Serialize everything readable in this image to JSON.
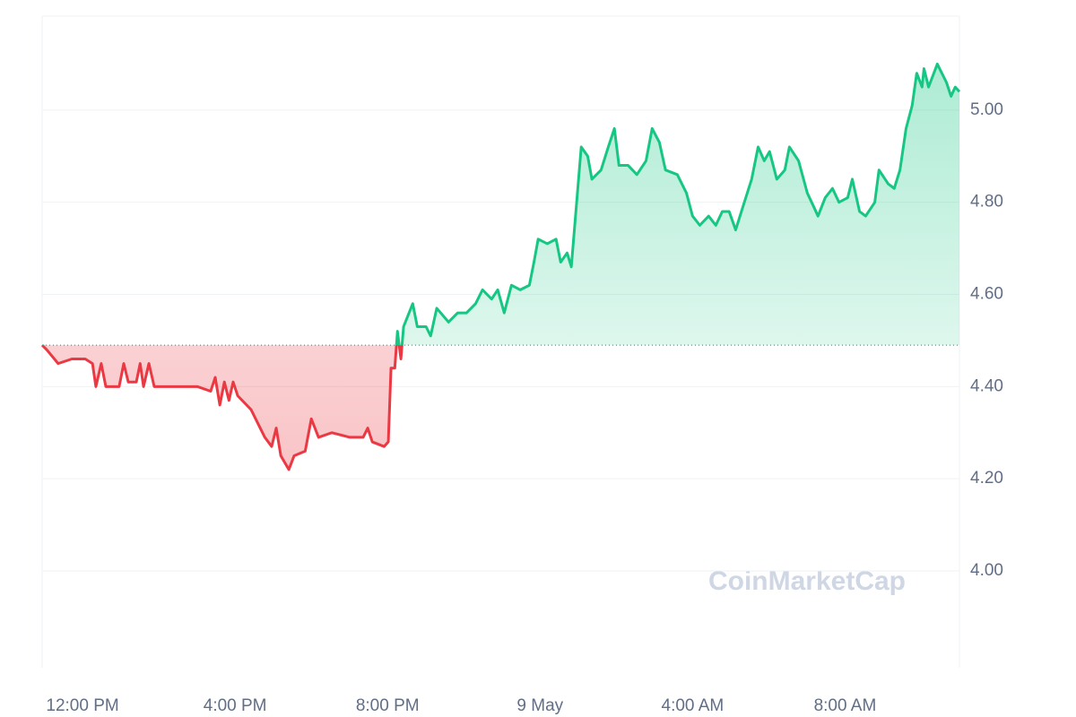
{
  "chart_data": {
    "type": "line",
    "watermark": "CoinMarketCap",
    "x": [
      10.94,
      11.06,
      11.36,
      11.72,
      12.07,
      12.26,
      12.35,
      12.49,
      12.61,
      12.96,
      13.08,
      13.2,
      13.41,
      13.51,
      13.6,
      13.74,
      13.88,
      14.31,
      15.01,
      15.36,
      15.48,
      15.6,
      15.72,
      15.84,
      15.95,
      16.07,
      16.42,
      16.78,
      16.96,
      17.08,
      17.2,
      17.41,
      17.55,
      17.84,
      18,
      18.19,
      18.54,
      19.01,
      19.36,
      19.48,
      19.6,
      19.91,
      20.02,
      20.09,
      20.19,
      20.26,
      20.35,
      20.42,
      20.66,
      20.78,
      21.01,
      21.13,
      21.29,
      21.6,
      21.84,
      22.07,
      22.31,
      22.49,
      22.73,
      22.89,
      23.06,
      23.25,
      23.48,
      23.72,
      23.84,
      23.95,
      24.19,
      24.42,
      24.54,
      24.71,
      24.82,
      25.08,
      25.25,
      25.36,
      25.6,
      25.79,
      25.95,
      26.07,
      26.31,
      26.54,
      26.78,
      26.94,
      27.13,
      27.29,
      27.6,
      27.84,
      28,
      28.19,
      28.42,
      28.61,
      28.78,
      28.96,
      29.13,
      29.32,
      29.55,
      29.72,
      29.88,
      30.02,
      30.21,
      30.42,
      30.54,
      30.78,
      31.01,
      31.18,
      31.29,
      31.48,
      31.67,
      31.84,
      32.07,
      32.19,
      32.38,
      32.54,
      32.78,
      32.89,
      33.13,
      33.29,
      33.44,
      33.6,
      33.76,
      33.88,
      34.02,
      34.07,
      34.19,
      34.42,
      34.66,
      34.78,
      34.89,
      35
    ],
    "series": [
      {
        "values": [
          4.49,
          4.48,
          4.45,
          4.46,
          4.46,
          4.45,
          4.4,
          4.45,
          4.4,
          4.4,
          4.45,
          4.41,
          4.41,
          4.45,
          4.4,
          4.45,
          4.4,
          4.4,
          4.4,
          4.39,
          4.42,
          4.36,
          4.41,
          4.37,
          4.41,
          4.38,
          4.35,
          4.29,
          4.27,
          4.31,
          4.25,
          4.22,
          4.25,
          4.26,
          4.33,
          4.29,
          4.3,
          4.29,
          4.29,
          4.31,
          4.28,
          4.27,
          4.28,
          4.44,
          4.44,
          4.52,
          4.46,
          4.53,
          4.58,
          4.53,
          4.53,
          4.51,
          4.57,
          4.54,
          4.56,
          4.56,
          4.58,
          4.61,
          4.59,
          4.61,
          4.56,
          4.62,
          4.61,
          4.62,
          4.67,
          4.72,
          4.71,
          4.72,
          4.67,
          4.69,
          4.66,
          4.92,
          4.9,
          4.85,
          4.87,
          4.92,
          4.96,
          4.88,
          4.88,
          4.86,
          4.89,
          4.96,
          4.93,
          4.87,
          4.86,
          4.82,
          4.77,
          4.75,
          4.77,
          4.75,
          4.78,
          4.78,
          4.74,
          4.79,
          4.85,
          4.92,
          4.89,
          4.91,
          4.85,
          4.87,
          4.92,
          4.89,
          4.82,
          4.79,
          4.77,
          4.81,
          4.83,
          4.8,
          4.81,
          4.85,
          4.78,
          4.77,
          4.8,
          4.87,
          4.84,
          4.83,
          4.87,
          4.96,
          5.01,
          5.08,
          5.05,
          5.09,
          5.05,
          5.1,
          5.06,
          5.03,
          5.05,
          5.04
        ]
      }
    ],
    "baseline": 4.49,
    "up_color": "#16c784",
    "down_color": "#ea3943",
    "xlim": [
      10.94,
      35
    ],
    "xticks": [
      {
        "value": 12,
        "label": "12:00 PM"
      },
      {
        "value": 16,
        "label": "4:00 PM"
      },
      {
        "value": 20,
        "label": "8:00 PM"
      },
      {
        "value": 24,
        "label": "9 May"
      },
      {
        "value": 28,
        "label": "4:00 AM"
      },
      {
        "value": 32,
        "label": "8:00 AM"
      }
    ],
    "ylim": [
      3.79,
      5.2
    ],
    "yticks": [
      {
        "value": 4,
        "label": "4.00"
      },
      {
        "value": 4.2,
        "label": "4.20"
      },
      {
        "value": 4.4,
        "label": "4.40"
      },
      {
        "value": 4.6,
        "label": "4.60"
      },
      {
        "value": 4.8,
        "label": "4.80"
      },
      {
        "value": 5,
        "label": "5.00"
      }
    ],
    "grid": true
  }
}
